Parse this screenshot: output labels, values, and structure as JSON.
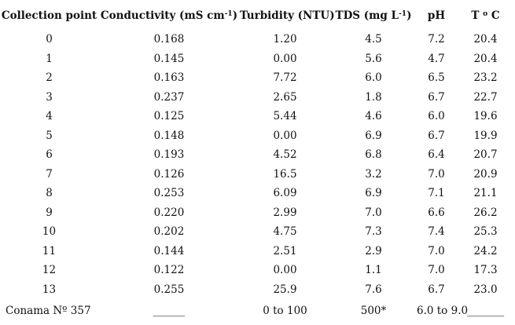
{
  "page": {
    "background": "#ffffff",
    "text_color": "#111111"
  },
  "table": {
    "columns": [
      {
        "pre": "Collection point",
        "sup": "",
        "post": ""
      },
      {
        "pre": "Conductivity (mS cm",
        "sup": "-1",
        "post": ")"
      },
      {
        "pre": "Turbidity (NTU)",
        "sup": "",
        "post": ""
      },
      {
        "pre": "TDS (mg L",
        "sup": "-1",
        "post": ")"
      },
      {
        "pre": "pH",
        "sup": "",
        "post": ""
      },
      {
        "pre": "T ",
        "sup": "o",
        "post": " C"
      }
    ],
    "rows": [
      [
        "0",
        "0.168",
        "1.20",
        "4.5",
        "7.2",
        "20.4"
      ],
      [
        "1",
        "0.145",
        "0.00",
        "5.6",
        "4.7",
        "20.4"
      ],
      [
        "2",
        "0.163",
        "7.72",
        "6.0",
        "6.5",
        "23.2"
      ],
      [
        "3",
        "0.237",
        "2.65",
        "1.8",
        "6.7",
        "22.7"
      ],
      [
        "4",
        "0.125",
        "5.44",
        "4.6",
        "6.0",
        "19.6"
      ],
      [
        "5",
        "0.148",
        "0.00",
        "6.9",
        "6.7",
        "19.9"
      ],
      [
        "6",
        "0.193",
        "4.52",
        "6.8",
        "6.4",
        "20.7"
      ],
      [
        "7",
        "0.126",
        "16.5",
        "3.2",
        "7.0",
        "20.9"
      ],
      [
        "8",
        "0.253",
        "6.09",
        "6.9",
        "7.1",
        "21.1"
      ],
      [
        "9",
        "0.220",
        "2.99",
        "7.0",
        "6.6",
        "26.2"
      ],
      [
        "10",
        "0.202",
        "4.75",
        "7.3",
        "7.4",
        "25.3"
      ],
      [
        "11",
        "0.144",
        "2.51",
        "2.9",
        "7.0",
        "24.2"
      ],
      [
        "12",
        "0.122",
        "0.00",
        "1.1",
        "7.0",
        "17.3"
      ],
      [
        "13",
        "0.255",
        "25.9",
        "7.6",
        "6.7",
        "23.0"
      ]
    ],
    "reference_row": [
      "Conama Nº 357",
      "______",
      "0 to 100",
      "500*",
      "6.0 to 9.0",
      "_______"
    ]
  }
}
